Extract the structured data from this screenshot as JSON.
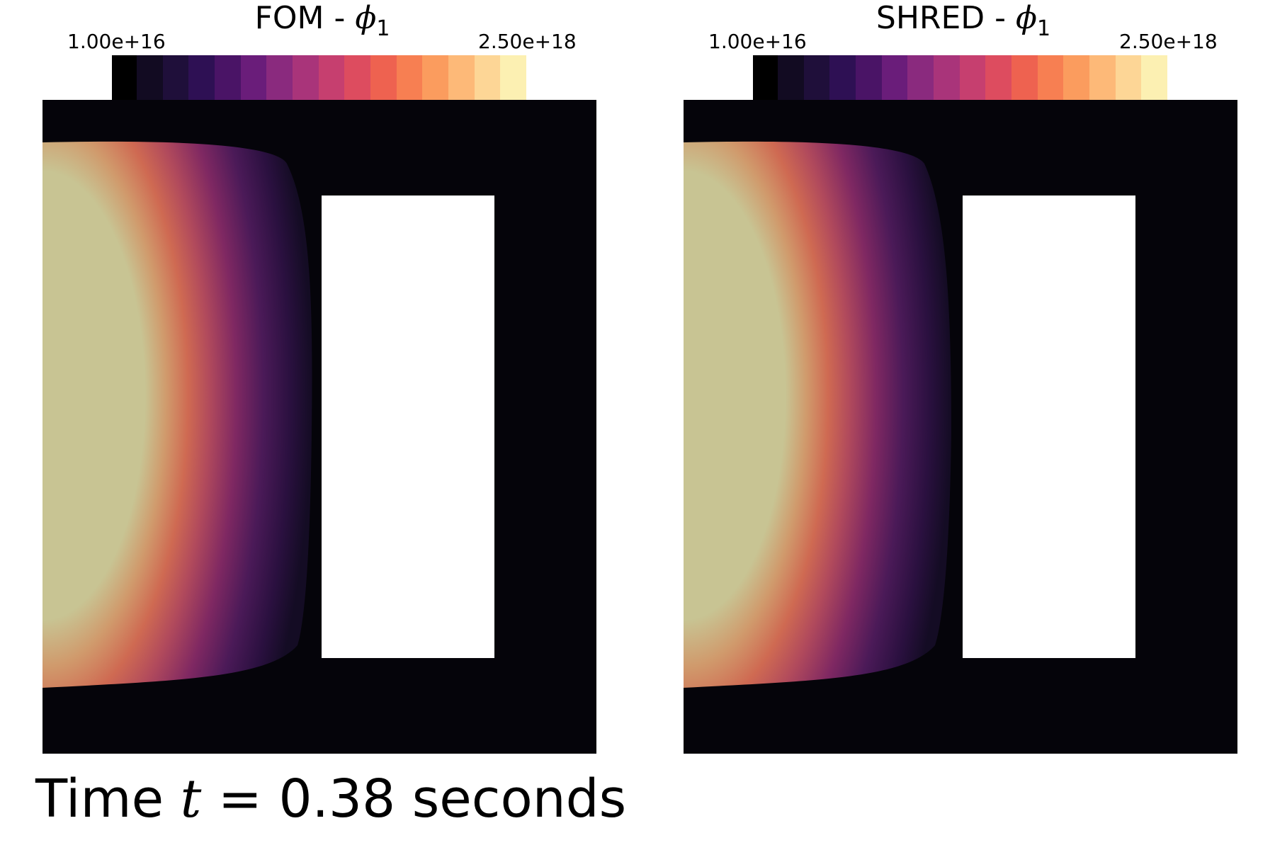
{
  "panels": [
    {
      "title_prefix": "FOM - ",
      "title_symbol": "ϕ",
      "title_sub": "1",
      "cbar_min": "1.00e+16",
      "cbar_max": "2.50e+18"
    },
    {
      "title_prefix": "SHRED - ",
      "title_symbol": "ϕ",
      "title_sub": "1",
      "cbar_min": "1.00e+16",
      "cbar_max": "2.50e+18"
    }
  ],
  "footer": {
    "prefix": "Time ",
    "variable": "t",
    "equals": " = ",
    "value": "0.38",
    "unit": " seconds"
  },
  "colormap": [
    "#120b22",
    "#1f0f3a",
    "#2e1054",
    "#4a1466",
    "#6a1d7a",
    "#8a2a7e",
    "#a9347a",
    "#c63f6f",
    "#dd4c5f",
    "#ee6250",
    "#f77f52",
    "#fb9c5e",
    "#fdb978",
    "#fdd696",
    "#fcf0b2"
  ]
}
